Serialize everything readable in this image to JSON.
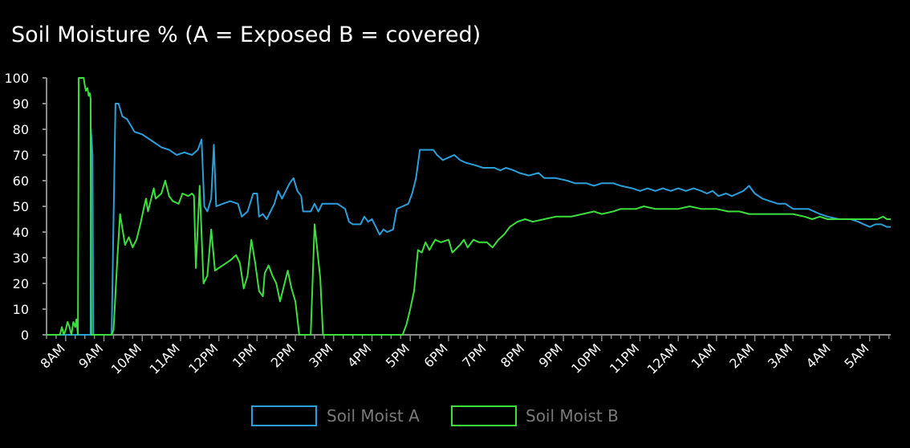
{
  "chart_data": {
    "type": "line",
    "title": "Soil Moisture % (A = Exposed B = covered)",
    "xlabel": "",
    "ylabel": "",
    "ylim": [
      0,
      100
    ],
    "xlim": [
      7.5,
      29.55
    ],
    "y_ticks": [
      0,
      10,
      20,
      30,
      40,
      50,
      60,
      70,
      80,
      90,
      100
    ],
    "x_ticks": [
      {
        "x": 8,
        "label": "8AM"
      },
      {
        "x": 9,
        "label": "9AM"
      },
      {
        "x": 10,
        "label": "10AM"
      },
      {
        "x": 11,
        "label": "11AM"
      },
      {
        "x": 12,
        "label": "12PM"
      },
      {
        "x": 13,
        "label": "1PM"
      },
      {
        "x": 14,
        "label": "2PM"
      },
      {
        "x": 15,
        "label": "3PM"
      },
      {
        "x": 16,
        "label": "4PM"
      },
      {
        "x": 17,
        "label": "5PM"
      },
      {
        "x": 18,
        "label": "6PM"
      },
      {
        "x": 19,
        "label": "7PM"
      },
      {
        "x": 20,
        "label": "8PM"
      },
      {
        "x": 21,
        "label": "9PM"
      },
      {
        "x": 22,
        "label": "10PM"
      },
      {
        "x": 23,
        "label": "11PM"
      },
      {
        "x": 24,
        "label": "12AM"
      },
      {
        "x": 25,
        "label": "1AM"
      },
      {
        "x": 26,
        "label": "2AM"
      },
      {
        "x": 27,
        "label": "3AM"
      },
      {
        "x": 28,
        "label": "4AM"
      },
      {
        "x": 29,
        "label": "5AM"
      }
    ],
    "grid": false,
    "legend_position": "bottom-center",
    "series": [
      {
        "name": "Soil Moist A",
        "color": "#2b9fd9",
        "points": [
          [
            7.5,
            0
          ],
          [
            8.65,
            0
          ],
          [
            8.66,
            80
          ],
          [
            8.7,
            70
          ],
          [
            8.72,
            0
          ],
          [
            9.2,
            0
          ],
          [
            9.3,
            90
          ],
          [
            9.38,
            90
          ],
          [
            9.48,
            85
          ],
          [
            9.6,
            84
          ],
          [
            9.8,
            79
          ],
          [
            10,
            78
          ],
          [
            10.3,
            75
          ],
          [
            10.5,
            73
          ],
          [
            10.7,
            72
          ],
          [
            10.9,
            70
          ],
          [
            11.1,
            71
          ],
          [
            11.3,
            70
          ],
          [
            11.45,
            72
          ],
          [
            11.55,
            76
          ],
          [
            11.62,
            50
          ],
          [
            11.7,
            48
          ],
          [
            11.8,
            53
          ],
          [
            11.87,
            74
          ],
          [
            11.93,
            50
          ],
          [
            12.1,
            51
          ],
          [
            12.3,
            52
          ],
          [
            12.5,
            51
          ],
          [
            12.6,
            46
          ],
          [
            12.75,
            48
          ],
          [
            12.9,
            55
          ],
          [
            13.0,
            55
          ],
          [
            13.05,
            46
          ],
          [
            13.15,
            47
          ],
          [
            13.25,
            45
          ],
          [
            13.45,
            51
          ],
          [
            13.55,
            56
          ],
          [
            13.65,
            53
          ],
          [
            13.85,
            59
          ],
          [
            13.95,
            61
          ],
          [
            14.05,
            56
          ],
          [
            14.15,
            54
          ],
          [
            14.2,
            48
          ],
          [
            14.4,
            48
          ],
          [
            14.5,
            51
          ],
          [
            14.6,
            48
          ],
          [
            14.7,
            51
          ],
          [
            14.9,
            51
          ],
          [
            15.1,
            51
          ],
          [
            15.3,
            49
          ],
          [
            15.4,
            44
          ],
          [
            15.5,
            43
          ],
          [
            15.7,
            43
          ],
          [
            15.8,
            46
          ],
          [
            15.9,
            44
          ],
          [
            16.0,
            45
          ],
          [
            16.1,
            42
          ],
          [
            16.2,
            39
          ],
          [
            16.3,
            41
          ],
          [
            16.4,
            40
          ],
          [
            16.55,
            41
          ],
          [
            16.65,
            49
          ],
          [
            16.8,
            50
          ],
          [
            16.95,
            51
          ],
          [
            17.05,
            55
          ],
          [
            17.15,
            61
          ],
          [
            17.25,
            72
          ],
          [
            17.6,
            72
          ],
          [
            17.7,
            70
          ],
          [
            17.85,
            68
          ],
          [
            18.0,
            69
          ],
          [
            18.15,
            70
          ],
          [
            18.3,
            68
          ],
          [
            18.45,
            67
          ],
          [
            18.7,
            66
          ],
          [
            18.9,
            65
          ],
          [
            19.2,
            65
          ],
          [
            19.35,
            64
          ],
          [
            19.5,
            65
          ],
          [
            19.7,
            64
          ],
          [
            19.85,
            63
          ],
          [
            20.1,
            62
          ],
          [
            20.35,
            63
          ],
          [
            20.5,
            61
          ],
          [
            20.8,
            61
          ],
          [
            21.1,
            60
          ],
          [
            21.3,
            59
          ],
          [
            21.6,
            59
          ],
          [
            21.8,
            58
          ],
          [
            22.0,
            59
          ],
          [
            22.3,
            59
          ],
          [
            22.5,
            58
          ],
          [
            22.8,
            57
          ],
          [
            23.0,
            56
          ],
          [
            23.2,
            57
          ],
          [
            23.4,
            56
          ],
          [
            23.6,
            57
          ],
          [
            23.8,
            56
          ],
          [
            24.0,
            57
          ],
          [
            24.2,
            56
          ],
          [
            24.4,
            57
          ],
          [
            24.6,
            56
          ],
          [
            24.75,
            55
          ],
          [
            24.9,
            56
          ],
          [
            25.05,
            54
          ],
          [
            25.25,
            55
          ],
          [
            25.4,
            54
          ],
          [
            25.55,
            55
          ],
          [
            25.7,
            56
          ],
          [
            25.85,
            58
          ],
          [
            26.0,
            55
          ],
          [
            26.2,
            53
          ],
          [
            26.4,
            52
          ],
          [
            26.6,
            51
          ],
          [
            26.8,
            51
          ],
          [
            27.0,
            49
          ],
          [
            27.2,
            49
          ],
          [
            27.4,
            49
          ],
          [
            27.55,
            48
          ],
          [
            27.7,
            47
          ],
          [
            27.9,
            46
          ],
          [
            28.2,
            45
          ],
          [
            28.5,
            45
          ],
          [
            28.7,
            44
          ],
          [
            28.85,
            43
          ],
          [
            29.0,
            42
          ],
          [
            29.15,
            43
          ],
          [
            29.3,
            43
          ],
          [
            29.45,
            42
          ],
          [
            29.55,
            42
          ]
        ]
      },
      {
        "name": "Soil Moist B",
        "color": "#3ce03c",
        "points": [
          [
            7.5,
            0
          ],
          [
            7.85,
            0
          ],
          [
            7.9,
            3
          ],
          [
            7.95,
            0
          ],
          [
            8.0,
            2
          ],
          [
            8.05,
            5
          ],
          [
            8.1,
            3
          ],
          [
            8.15,
            0
          ],
          [
            8.2,
            5
          ],
          [
            8.25,
            3
          ],
          [
            8.28,
            6
          ],
          [
            8.32,
            0
          ],
          [
            8.34,
            100
          ],
          [
            8.47,
            100
          ],
          [
            8.5,
            97
          ],
          [
            8.53,
            95
          ],
          [
            8.57,
            96
          ],
          [
            8.6,
            93
          ],
          [
            8.63,
            94
          ],
          [
            8.65,
            92
          ],
          [
            8.67,
            0
          ],
          [
            9.2,
            0
          ],
          [
            9.25,
            2
          ],
          [
            9.35,
            30
          ],
          [
            9.42,
            47
          ],
          [
            9.55,
            35
          ],
          [
            9.65,
            38
          ],
          [
            9.75,
            34
          ],
          [
            9.85,
            37
          ],
          [
            9.95,
            43
          ],
          [
            10.05,
            50
          ],
          [
            10.1,
            53
          ],
          [
            10.15,
            48
          ],
          [
            10.3,
            57
          ],
          [
            10.35,
            53
          ],
          [
            10.5,
            55
          ],
          [
            10.6,
            60
          ],
          [
            10.7,
            54
          ],
          [
            10.8,
            52
          ],
          [
            10.95,
            51
          ],
          [
            11.05,
            55
          ],
          [
            11.2,
            54
          ],
          [
            11.3,
            55
          ],
          [
            11.35,
            54
          ],
          [
            11.4,
            26
          ],
          [
            11.5,
            58
          ],
          [
            11.6,
            20
          ],
          [
            11.7,
            23
          ],
          [
            11.8,
            41
          ],
          [
            11.9,
            25
          ],
          [
            12.1,
            27
          ],
          [
            12.3,
            29
          ],
          [
            12.45,
            31
          ],
          [
            12.55,
            28
          ],
          [
            12.65,
            18
          ],
          [
            12.75,
            23
          ],
          [
            12.85,
            37
          ],
          [
            12.95,
            28
          ],
          [
            13.05,
            17
          ],
          [
            13.15,
            15
          ],
          [
            13.2,
            24
          ],
          [
            13.3,
            27
          ],
          [
            13.4,
            23
          ],
          [
            13.5,
            20
          ],
          [
            13.6,
            13
          ],
          [
            13.7,
            19
          ],
          [
            13.8,
            25
          ],
          [
            13.9,
            18
          ],
          [
            14.0,
            13
          ],
          [
            14.1,
            0
          ],
          [
            14.4,
            0
          ],
          [
            14.5,
            43
          ],
          [
            14.65,
            22
          ],
          [
            14.72,
            0
          ],
          [
            14.85,
            0
          ],
          [
            15.5,
            0
          ],
          [
            16.0,
            0
          ],
          [
            16.5,
            0
          ],
          [
            16.8,
            0
          ],
          [
            16.9,
            4
          ],
          [
            17.0,
            10
          ],
          [
            17.1,
            17
          ],
          [
            17.2,
            33
          ],
          [
            17.3,
            32
          ],
          [
            17.4,
            36
          ],
          [
            17.5,
            33
          ],
          [
            17.65,
            37
          ],
          [
            17.8,
            36
          ],
          [
            18.0,
            37
          ],
          [
            18.1,
            32
          ],
          [
            18.3,
            35
          ],
          [
            18.4,
            37
          ],
          [
            18.5,
            34
          ],
          [
            18.65,
            37
          ],
          [
            18.8,
            36
          ],
          [
            19.0,
            36
          ],
          [
            19.15,
            34
          ],
          [
            19.3,
            37
          ],
          [
            19.45,
            39
          ],
          [
            19.6,
            42
          ],
          [
            19.8,
            44
          ],
          [
            20.0,
            45
          ],
          [
            20.2,
            44
          ],
          [
            20.5,
            45
          ],
          [
            20.8,
            46
          ],
          [
            21.0,
            46
          ],
          [
            21.2,
            46
          ],
          [
            21.5,
            47
          ],
          [
            21.8,
            48
          ],
          [
            22.0,
            47
          ],
          [
            22.3,
            48
          ],
          [
            22.5,
            49
          ],
          [
            22.7,
            49
          ],
          [
            22.9,
            49
          ],
          [
            23.1,
            50
          ],
          [
            23.4,
            49
          ],
          [
            23.7,
            49
          ],
          [
            24.0,
            49
          ],
          [
            24.3,
            50
          ],
          [
            24.6,
            49
          ],
          [
            24.8,
            49
          ],
          [
            25.0,
            49
          ],
          [
            25.3,
            48
          ],
          [
            25.6,
            48
          ],
          [
            25.85,
            47
          ],
          [
            26.0,
            47
          ],
          [
            26.5,
            47
          ],
          [
            27.0,
            47
          ],
          [
            27.3,
            46
          ],
          [
            27.5,
            45
          ],
          [
            27.7,
            46
          ],
          [
            27.9,
            45
          ],
          [
            28.1,
            45
          ],
          [
            28.4,
            45
          ],
          [
            28.7,
            45
          ],
          [
            29.0,
            45
          ],
          [
            29.2,
            45
          ],
          [
            29.35,
            46
          ],
          [
            29.45,
            45
          ],
          [
            29.55,
            45
          ]
        ]
      }
    ]
  }
}
